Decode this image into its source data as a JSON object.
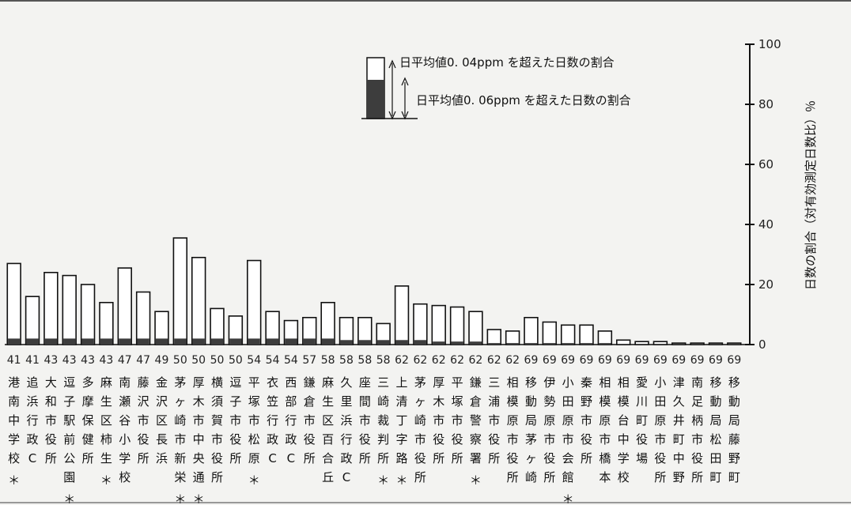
{
  "chart_data": {
    "type": "bar",
    "ylim": [
      0,
      100
    ],
    "y_ticks": [
      "0",
      "20",
      "40",
      "60",
      "80",
      "100"
    ],
    "ylabel": "日数の割合（対有効測定日数比）％",
    "legend": {
      "total_label": "日平均値0. 04ppm を超えた日数の割合",
      "dark_label": "日平均値0. 06ppm を超えた日数の割合"
    },
    "categories": [
      "港南中学校",
      "追浜行政C",
      "大和市役所",
      "逗子駅前公園",
      "多摩保健所",
      "麻生区柿生",
      "南瀬谷小学校",
      "藤沢市役所",
      "金沢区長浜",
      "茅ヶ崎市新栄",
      "厚木市中央通",
      "横須賀市役所",
      "逗子市役所",
      "平塚市松原",
      "衣笠行政C",
      "西部行政C",
      "鎌倉市役所",
      "麻生区百合丘",
      "久里浜行政C",
      "座間市役所",
      "三崎裁判所",
      "上清丁字路",
      "茅ヶ崎市役所",
      "厚木市役所",
      "平塚市役所",
      "鎌倉警察署",
      "三浦市役所",
      "相模原市役所",
      "移動局茅ヶ崎",
      "伊勢原市役所",
      "小田原市会館",
      "秦野市役所",
      "相模原市橋本",
      "相模台中学校",
      "愛川町役場",
      "小田原市役所",
      "津久井町中野",
      "南足柄市役所",
      "移動局松田町",
      "移動局藤野町"
    ],
    "ranks": [
      "41",
      "41",
      "43",
      "43",
      "43",
      "43",
      "47",
      "47",
      "49",
      "50",
      "50",
      "50",
      "50",
      "54",
      "54",
      "54",
      "57",
      "58",
      "58",
      "58",
      "58",
      "62",
      "62",
      "62",
      "62",
      "62",
      "62",
      "62",
      "69",
      "69",
      "69",
      "69",
      "69",
      "69",
      "69",
      "69",
      "69",
      "69",
      "69",
      "69"
    ],
    "asterisks": [
      true,
      false,
      false,
      true,
      false,
      true,
      false,
      false,
      false,
      true,
      true,
      false,
      false,
      true,
      false,
      false,
      false,
      false,
      false,
      false,
      true,
      true,
      false,
      false,
      false,
      true,
      false,
      false,
      false,
      false,
      true,
      false,
      false,
      false,
      false,
      false,
      false,
      false,
      false,
      false
    ],
    "series": [
      {
        "name": "日平均値0. 04ppm を超えた日数の割合",
        "values": [
          27,
          16,
          24,
          23,
          20,
          14,
          25.5,
          17.5,
          11,
          35.5,
          29,
          12,
          9.5,
          28,
          11,
          8,
          9,
          14,
          9,
          9,
          7,
          19.5,
          13.5,
          13,
          12.5,
          11,
          5,
          4.5,
          9,
          7.5,
          6.5,
          6.5,
          4.5,
          1.5,
          1,
          1,
          0.5,
          0.5,
          0.5,
          0.5
        ]
      },
      {
        "name": "日平均値0. 06ppm を超えた日数の割合",
        "values": [
          2,
          2,
          2,
          2,
          2,
          2,
          2,
          2,
          2,
          2,
          2,
          2,
          2,
          2,
          2,
          2,
          2,
          2,
          1.5,
          1.5,
          1.5,
          1.5,
          1.5,
          1,
          1,
          1,
          0.5,
          0.5,
          0.5,
          0.5,
          0.5,
          0.5,
          0.5,
          0.2,
          0.2,
          0.2,
          0.2,
          0.2,
          0.2,
          0.2
        ]
      }
    ]
  },
  "colors": {
    "bar_fill": "#ffffff",
    "bar_dark": "#3d3d3d",
    "line": "#111111",
    "background": "#f3f3f1"
  }
}
